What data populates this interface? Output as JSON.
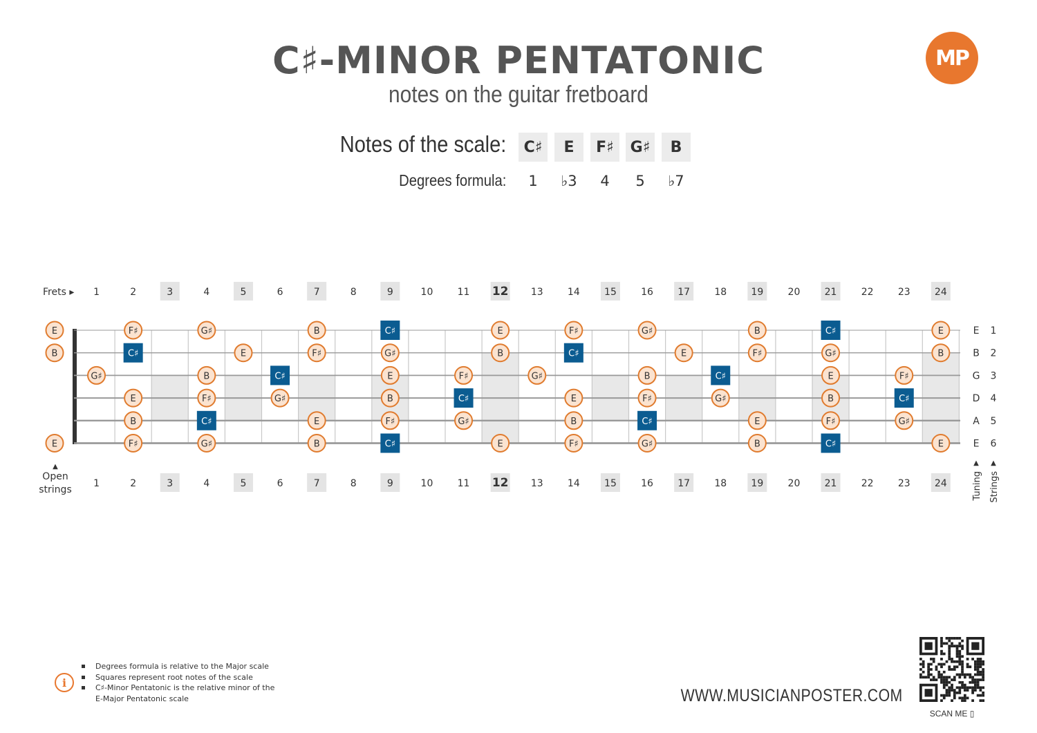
{
  "header": {
    "title": "C♯-MINOR PENTATONIC",
    "subtitle": "notes on the guitar fretboard",
    "logo_text": "MP"
  },
  "scale": {
    "notes_label": "Notes of the scale:",
    "degrees_label": "Degrees formula:",
    "notes": [
      "C♯",
      "E",
      "F♯",
      "G♯",
      "B"
    ],
    "degrees": [
      "1",
      "♭3",
      "4",
      "5",
      "♭7"
    ]
  },
  "fretboard": {
    "frets_label": "Frets ▸",
    "open_label_1": "Open",
    "open_label_2": "strings",
    "open_arrow": "▲",
    "tuning_label": "Tuning",
    "strings_label": "Strings",
    "fret_numbers": [
      "1",
      "2",
      "3",
      "4",
      "5",
      "6",
      "7",
      "8",
      "9",
      "10",
      "11",
      "12",
      "13",
      "14",
      "15",
      "16",
      "17",
      "18",
      "19",
      "20",
      "21",
      "22",
      "23",
      "24"
    ],
    "highlighted_frets": [
      3,
      5,
      7,
      9,
      12,
      15,
      17,
      19,
      21,
      24
    ],
    "strings": [
      {
        "number": "1",
        "tuning": "E",
        "open": "E",
        "notes": [
          [
            2,
            "F♯"
          ],
          [
            4,
            "G♯"
          ],
          [
            7,
            "B"
          ],
          [
            9,
            "C♯"
          ],
          [
            12,
            "E"
          ],
          [
            14,
            "F♯"
          ],
          [
            16,
            "G♯"
          ],
          [
            19,
            "B"
          ],
          [
            21,
            "C♯"
          ],
          [
            24,
            "E"
          ]
        ]
      },
      {
        "number": "2",
        "tuning": "B",
        "open": "B",
        "notes": [
          [
            2,
            "C♯"
          ],
          [
            5,
            "E"
          ],
          [
            7,
            "F♯"
          ],
          [
            9,
            "G♯"
          ],
          [
            12,
            "B"
          ],
          [
            14,
            "C♯"
          ],
          [
            17,
            "E"
          ],
          [
            19,
            "F♯"
          ],
          [
            21,
            "G♯"
          ],
          [
            24,
            "B"
          ]
        ]
      },
      {
        "number": "3",
        "tuning": "G",
        "open": "",
        "notes": [
          [
            1,
            "G♯"
          ],
          [
            4,
            "B"
          ],
          [
            6,
            "C♯"
          ],
          [
            9,
            "E"
          ],
          [
            11,
            "F♯"
          ],
          [
            13,
            "G♯"
          ],
          [
            16,
            "B"
          ],
          [
            18,
            "C♯"
          ],
          [
            21,
            "E"
          ],
          [
            23,
            "F♯"
          ]
        ]
      },
      {
        "number": "4",
        "tuning": "D",
        "open": "",
        "notes": [
          [
            2,
            "E"
          ],
          [
            4,
            "F♯"
          ],
          [
            6,
            "G♯"
          ],
          [
            9,
            "B"
          ],
          [
            11,
            "C♯"
          ],
          [
            14,
            "E"
          ],
          [
            16,
            "F♯"
          ],
          [
            18,
            "G♯"
          ],
          [
            21,
            "B"
          ],
          [
            23,
            "C♯"
          ]
        ]
      },
      {
        "number": "5",
        "tuning": "A",
        "open": "",
        "notes": [
          [
            2,
            "B"
          ],
          [
            4,
            "C♯"
          ],
          [
            7,
            "E"
          ],
          [
            9,
            "F♯"
          ],
          [
            11,
            "G♯"
          ],
          [
            14,
            "B"
          ],
          [
            16,
            "C♯"
          ],
          [
            19,
            "E"
          ],
          [
            21,
            "F♯"
          ],
          [
            23,
            "G♯"
          ]
        ]
      },
      {
        "number": "6",
        "tuning": "E",
        "open": "E",
        "notes": [
          [
            2,
            "F♯"
          ],
          [
            4,
            "G♯"
          ],
          [
            7,
            "B"
          ],
          [
            9,
            "C♯"
          ],
          [
            12,
            "E"
          ],
          [
            14,
            "F♯"
          ],
          [
            16,
            "G♯"
          ],
          [
            19,
            "B"
          ],
          [
            21,
            "C♯"
          ],
          [
            24,
            "E"
          ]
        ]
      }
    ],
    "root_note": "C♯"
  },
  "footer": {
    "notes": [
      "Degrees formula is relative to the Major scale",
      "Squares represent root notes of the scale",
      "C♯-Minor Pentatonic is the relative minor of the",
      "E-Major Pentatonic scale"
    ],
    "website": "WWW.MUSICIANPOSTER.COM",
    "scan_me": "SCAN ME ▯"
  },
  "colors": {
    "root": "#0b5c91",
    "note_fill": "#fbe3d0",
    "note_stroke": "#e07b2e",
    "accent": "#e8772e",
    "marker_bg": "#e8e8e8"
  }
}
